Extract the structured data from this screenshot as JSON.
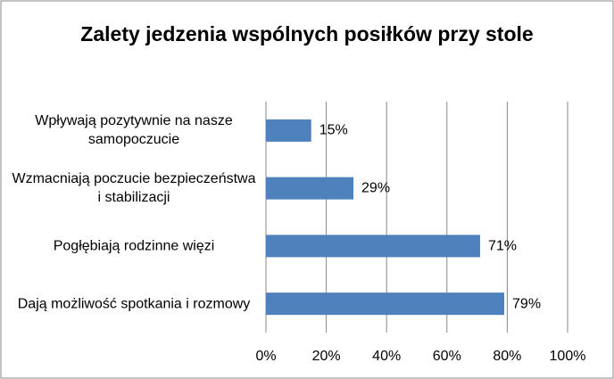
{
  "chart_data": {
    "type": "bar",
    "orientation": "horizontal",
    "title": "Zalety jedzenia wspólnych posiłków przy stole",
    "categories": [
      "Wpływają pozytywnie na nasze samopoczucie",
      "Wzmacniają poczucie bezpieczeństwa i stabilizacji",
      "Pogłębiają rodzinne więzi",
      "Dają możliwość spotkania i rozmowy"
    ],
    "values": [
      15,
      29,
      71,
      79
    ],
    "value_labels": [
      "15%",
      "29%",
      "71%",
      "79%"
    ],
    "color": "#4f81bd",
    "xlim": [
      0,
      100
    ],
    "xticks": [
      {
        "value": 0,
        "label": "0%"
      },
      {
        "value": 20,
        "label": "20%"
      },
      {
        "value": 40,
        "label": "40%"
      },
      {
        "value": 60,
        "label": "60%"
      },
      {
        "value": 80,
        "label": "80%"
      },
      {
        "value": 100,
        "label": "100%"
      }
    ],
    "grid": true
  }
}
